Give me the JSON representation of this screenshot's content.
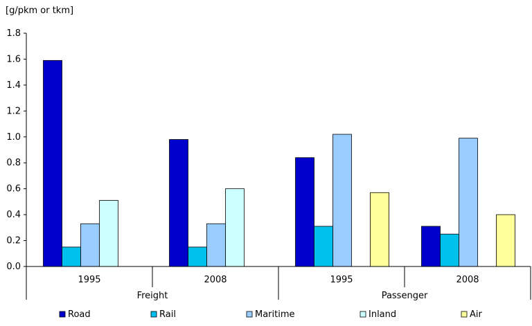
{
  "chart_data": {
    "type": "bar",
    "ylabel": "[g/pkm or tkm]",
    "ylim": [
      0,
      1.8
    ],
    "yticks": [
      "0.0",
      "0.2",
      "0.4",
      "0.6",
      "0.8",
      "1.0",
      "1.2",
      "1.4",
      "1.6",
      "1.8"
    ],
    "ytick_values": [
      0,
      0.2,
      0.4,
      0.6,
      0.8,
      1.0,
      1.2,
      1.4,
      1.6,
      1.8
    ],
    "groups": [
      {
        "label": "Freight",
        "categories": [
          "1995",
          "2008"
        ]
      },
      {
        "label": "Passenger",
        "categories": [
          "1995",
          "2008"
        ]
      }
    ],
    "categories": [
      "1995",
      "2008",
      "1995",
      "2008"
    ],
    "series": [
      {
        "name": "Road",
        "color": "#0000cc",
        "values": [
          1.59,
          0.98,
          0.84,
          0.31
        ]
      },
      {
        "name": "Rail",
        "color": "#00c0ee",
        "values": [
          0.15,
          0.15,
          0.31,
          0.25
        ]
      },
      {
        "name": "Maritime",
        "color": "#99ccff",
        "values": [
          0.33,
          0.33,
          1.02,
          0.99
        ]
      },
      {
        "name": "Inland",
        "color": "#ccffff",
        "values": [
          0.51,
          0.6,
          null,
          null
        ]
      },
      {
        "name": "Air",
        "color": "#ffff99",
        "values": [
          null,
          null,
          0.57,
          0.4
        ]
      }
    ],
    "legend": "bottom",
    "grid": false
  }
}
